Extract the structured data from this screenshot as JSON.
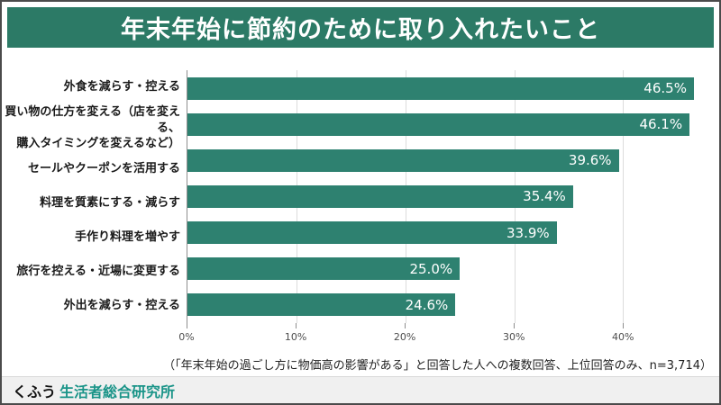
{
  "title": "年末年始に節約のために取り入れたいこと",
  "chart_data": {
    "type": "bar",
    "orientation": "horizontal",
    "title": "年末年始に節約のために取り入れたいこと",
    "categories": [
      "外食を減らす・控える",
      "買い物の仕方を変える（店を変える、\n購入タイミングを変えるなど）",
      "セールやクーポンを活用する",
      "料理を質素にする・減らす",
      "手作り料理を増やす",
      "旅行を控える・近場に変更する",
      "外出を減らす・控える"
    ],
    "values": [
      46.5,
      46.1,
      39.6,
      35.4,
      33.9,
      25.0,
      24.6
    ],
    "value_labels": [
      "46.5%",
      "46.1%",
      "39.6%",
      "35.4%",
      "33.9%",
      "25.0%",
      "24.6%"
    ],
    "xlabel": "",
    "ylabel": "",
    "xlim": [
      0,
      47
    ],
    "x_ticks": [
      0,
      10,
      20,
      30,
      40
    ],
    "x_tick_labels": [
      "0%",
      "10%",
      "20%",
      "30%",
      "40%"
    ],
    "grid": true,
    "legend": "none",
    "value_label_position": "inside-end"
  },
  "footnote": "（「年末年始の過ごし方に物価高の影響がある」と回答した人への複数回答、上位回答のみ、n=3,714）",
  "footer": {
    "brand": "くふう",
    "brand_suffix": "生活者総合研究所"
  },
  "colors": {
    "header_bg": "#2c7a66",
    "bar": "#2e8170",
    "footer_suffix": "#1a9488",
    "header_text": "#ffffff"
  }
}
